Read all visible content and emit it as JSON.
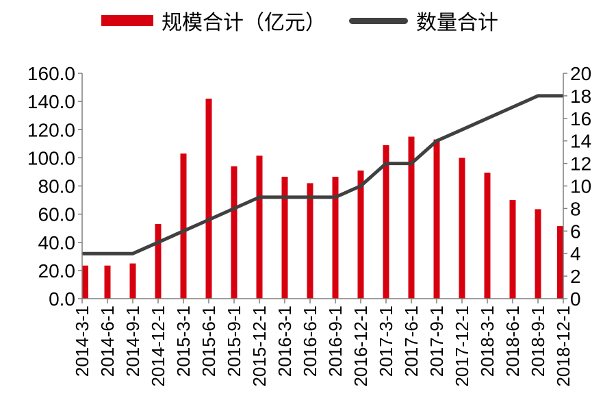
{
  "chart_data": {
    "type": "bar",
    "categories": [
      "2014-3-1",
      "2014-6-1",
      "2014-9-1",
      "2014-12-1",
      "2015-3-1",
      "2015-6-1",
      "2015-9-1",
      "2015-12-1",
      "2016-3-1",
      "2016-6-1",
      "2016-9-1",
      "2016-12-1",
      "2017-3-1",
      "2017-6-1",
      "2017-9-1",
      "2017-12-1",
      "2018-3-1",
      "2018-6-1",
      "2018-9-1",
      "2018-12-1"
    ],
    "series": [
      {
        "name": "规模合计（亿元）",
        "type": "bar",
        "axis": "left",
        "color": "#d7000f",
        "values": [
          23.5,
          23.5,
          25,
          53,
          103,
          142,
          94,
          101.5,
          86.5,
          82,
          86.5,
          91,
          109,
          115,
          113,
          100,
          89.5,
          70,
          63.5,
          51.5
        ]
      },
      {
        "name": "数量合计",
        "type": "line",
        "axis": "right",
        "color": "#404040",
        "values": [
          4,
          4,
          4,
          5,
          6,
          7,
          8,
          9,
          9,
          9,
          9,
          10,
          12,
          12,
          14,
          15,
          16,
          17,
          18,
          18
        ]
      }
    ],
    "y_left": {
      "min": 0,
      "max": 160,
      "ticks": [
        "0.0",
        "20.0",
        "40.0",
        "60.0",
        "80.0",
        "100.0",
        "120.0",
        "140.0",
        "160.0"
      ]
    },
    "y_right": {
      "min": 0,
      "max": 20,
      "ticks": [
        "0",
        "2",
        "4",
        "6",
        "8",
        "10",
        "12",
        "14",
        "16",
        "18",
        "20"
      ]
    },
    "legend_position": "top",
    "grid": false
  }
}
